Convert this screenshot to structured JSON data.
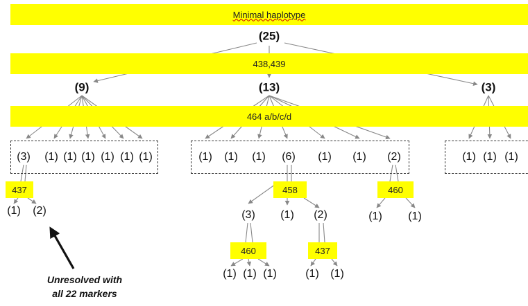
{
  "title_band": {
    "text": "Minimal haplotype"
  },
  "root_count": "(25)",
  "band_438": {
    "text": "438,439"
  },
  "band_464": {
    "text": "464 a/b/c/d"
  },
  "level1": {
    "left": "(9)",
    "middle": "(13)",
    "right": "(3)"
  },
  "left_group": {
    "counts": [
      "(3)",
      "(1)",
      "(1)",
      "(1)",
      "(1)",
      "(1)",
      "(1)"
    ]
  },
  "middle_group": {
    "counts": [
      "(1)",
      "(1)",
      "(1)",
      "(6)",
      "(1)",
      "(1)",
      "(2)"
    ]
  },
  "right_group": {
    "counts": [
      "(1)",
      "(1)",
      "(1)"
    ]
  },
  "marker_boxes": {
    "m437_left": "437",
    "m458": "458",
    "m460_right": "460",
    "m460_lower": "460",
    "m437_lower": "437"
  },
  "sub_437_left": {
    "counts": [
      "(1)",
      "(2)"
    ]
  },
  "sub_458": {
    "counts": [
      "(3)",
      "(1)",
      "(2)"
    ]
  },
  "sub_460_right": {
    "counts": [
      "(1)",
      "(1)"
    ]
  },
  "sub_460_lower": {
    "counts": [
      "(1)",
      "(1)",
      "(1)"
    ]
  },
  "sub_437_lower": {
    "counts": [
      "(1)",
      "(1)"
    ]
  },
  "annotation": {
    "line1": "Unresolved with",
    "line2": "all 22 markers"
  },
  "colors": {
    "band": "#ffff00",
    "line": "#888888",
    "dash": "#333333",
    "arrow": "#111111"
  }
}
